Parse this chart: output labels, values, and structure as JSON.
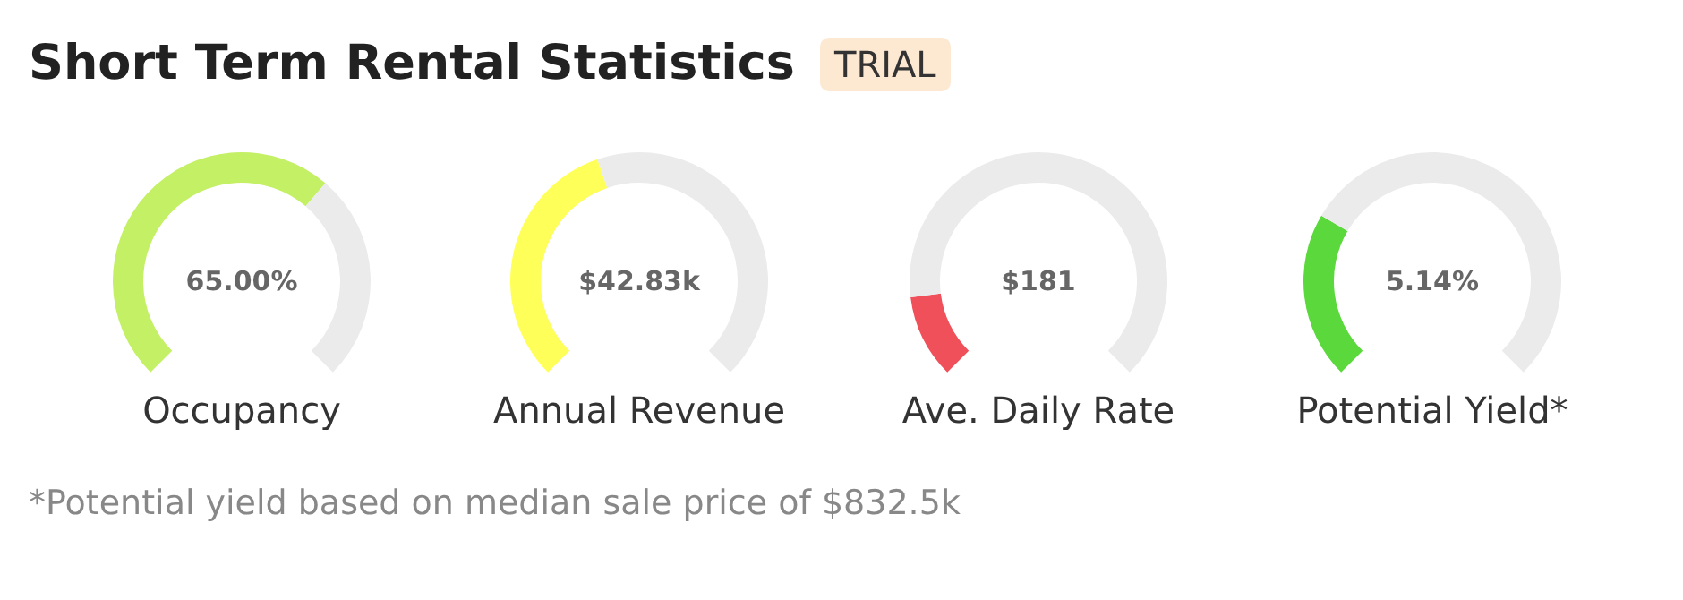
{
  "chart_data": [
    {
      "type": "other",
      "title": "Short Term Rental Statistics",
      "subtitle": "TRIAL",
      "annotations": [
        "*Potential yield based on median sale price of $832.5k"
      ]
    },
    {
      "type": "donut",
      "title": "Occupancy",
      "categories": [
        null,
        null
      ],
      "values": [
        65,
        35
      ],
      "colors": [
        "#c3f064",
        "#ebebeb"
      ],
      "annotations": [
        "65.00%"
      ]
    },
    {
      "type": "donut",
      "title": "Annual Revenue",
      "categories": [
        null,
        null
      ],
      "values": [
        43,
        57
      ],
      "colors": [
        "#ffff5a",
        "#ebebeb"
      ],
      "annotations": [
        "$42.83k"
      ]
    },
    {
      "type": "donut",
      "title": "Ave. Daily Rate",
      "categories": [
        null,
        null
      ],
      "values": [
        14,
        86
      ],
      "colors": [
        "#f0505a",
        "#ebebeb"
      ],
      "annotations": [
        "$181"
      ]
    },
    {
      "type": "donut",
      "title": "Potential Yield*",
      "categories": [
        null,
        null
      ],
      "values": [
        28,
        72
      ],
      "colors": [
        "#5ad83c",
        "#ebebeb"
      ],
      "annotations": [
        "5.14%"
      ]
    }
  ]
}
